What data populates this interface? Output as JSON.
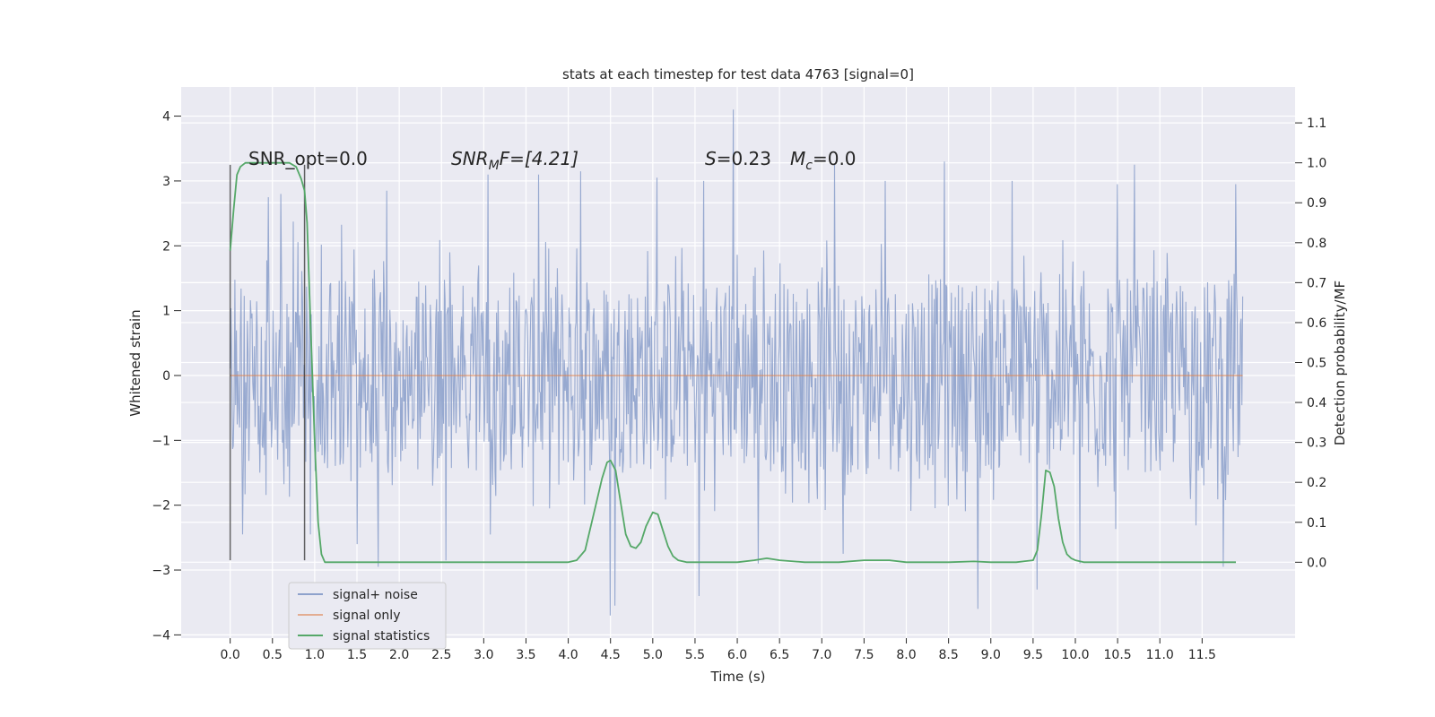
{
  "chart_data": {
    "type": "line",
    "title": "stats at each timestep for test data 4763 [signal=0]",
    "xlabel": "Time (s)",
    "ylabel_left": "Whitened strain",
    "ylabel_right": "Detection probability/MF",
    "xlim": [
      -0.58,
      12.6
    ],
    "ylim_left": [
      -4.05,
      4.45
    ],
    "ylim_right": [
      -0.19,
      1.19
    ],
    "x_ticks": [
      "0.0",
      "0.5",
      "1.0",
      "1.5",
      "2.0",
      "2.5",
      "3.0",
      "3.5",
      "4.0",
      "4.5",
      "5.0",
      "5.5",
      "6.0",
      "6.5",
      "7.0",
      "7.5",
      "8.0",
      "8.5",
      "9.0",
      "9.5",
      "10.0",
      "10.5",
      "11.0",
      "11.5"
    ],
    "y_ticks_left": [
      "−4",
      "−3",
      "−2",
      "−1",
      "0",
      "1",
      "2",
      "3",
      "4"
    ],
    "y_ticks_right": [
      "0.0",
      "0.1",
      "0.2",
      "0.3",
      "0.4",
      "0.5",
      "0.6",
      "0.7",
      "0.8",
      "0.9",
      "1.0",
      "1.1"
    ],
    "grid": true,
    "legend_position": "lower-left",
    "annotations": {
      "snr_opt": "SNR_opt=0.0",
      "snr_mf_sym": "SNR",
      "snr_mf_sub": "M",
      "snr_mf_rest": "F=[4.21]",
      "s_sym": "S",
      "s_rest": "=0.23",
      "mc_sym": "M",
      "mc_sub": "c",
      "mc_rest": "=0.0"
    },
    "markers": {
      "x_start": 0.0,
      "x_end": 0.88,
      "y_top": 3.25,
      "y_bottom": -2.85
    },
    "series": [
      {
        "name": "signal+ noise",
        "color": "#8ea2cc",
        "description_range": {
          "x": [
            0.0,
            11.98
          ],
          "typical_envelope": [
            -1.6,
            1.6
          ],
          "extreme_min": -3.7,
          "extreme_max": 4.1
        },
        "spikes_up": [
          [
            0.45,
            2.75
          ],
          [
            0.6,
            2.8
          ],
          [
            0.95,
            2.8
          ],
          [
            1.85,
            2.85
          ],
          [
            2.55,
            3.0
          ],
          [
            3.05,
            3.1
          ],
          [
            3.65,
            3.1
          ],
          [
            4.15,
            3.15
          ],
          [
            5.05,
            3.05
          ],
          [
            5.6,
            3.0
          ],
          [
            5.95,
            4.1
          ],
          [
            6.25,
            2.95
          ],
          [
            7.15,
            3.25
          ],
          [
            7.75,
            3.0
          ],
          [
            8.45,
            3.3
          ],
          [
            9.25,
            3.0
          ],
          [
            10.05,
            3.05
          ],
          [
            10.7,
            3.25
          ],
          [
            10.5,
            2.95
          ],
          [
            11.9,
            2.95
          ]
        ],
        "spikes_down": [
          [
            0.15,
            -2.45
          ],
          [
            0.95,
            -2.45
          ],
          [
            1.5,
            -2.6
          ],
          [
            1.75,
            -2.95
          ],
          [
            2.55,
            -2.85
          ],
          [
            4.5,
            -3.7
          ],
          [
            4.55,
            -3.55
          ],
          [
            5.55,
            -3.4
          ],
          [
            6.25,
            -2.9
          ],
          [
            7.25,
            -2.75
          ],
          [
            8.85,
            -3.6
          ],
          [
            9.55,
            -3.3
          ],
          [
            10.05,
            -2.9
          ],
          [
            11.75,
            -2.95
          ]
        ]
      },
      {
        "name": "signal only",
        "color": "#dd8452",
        "x": [
          0.0,
          11.98
        ],
        "y": [
          0.0,
          0.0
        ]
      },
      {
        "name": "signal statistics",
        "color": "#55a868",
        "axis": "right",
        "x": [
          0.0,
          0.04,
          0.08,
          0.12,
          0.18,
          0.25,
          0.4,
          0.55,
          0.7,
          0.78,
          0.84,
          0.88,
          0.91,
          0.95,
          1.0,
          1.04,
          1.08,
          1.12,
          1.2,
          1.5,
          2.0,
          3.0,
          4.0,
          4.1,
          4.2,
          4.3,
          4.4,
          4.46,
          4.5,
          4.56,
          4.62,
          4.68,
          4.74,
          4.8,
          4.86,
          4.92,
          5.0,
          5.06,
          5.12,
          5.18,
          5.24,
          5.3,
          5.4,
          5.6,
          5.8,
          6.0,
          6.2,
          6.35,
          6.5,
          6.8,
          7.2,
          7.5,
          7.8,
          8.0,
          8.5,
          8.8,
          9.0,
          9.3,
          9.5,
          9.55,
          9.6,
          9.65,
          9.7,
          9.75,
          9.8,
          9.85,
          9.9,
          9.95,
          10.0,
          10.1,
          10.3,
          10.6,
          11.0,
          11.5,
          11.9
        ],
        "y": [
          0.78,
          0.88,
          0.97,
          0.99,
          1.0,
          1.0,
          1.0,
          1.0,
          1.0,
          0.99,
          0.96,
          0.93,
          0.85,
          0.6,
          0.3,
          0.1,
          0.02,
          0.0,
          0.0,
          0.0,
          0.0,
          0.0,
          0.0,
          0.005,
          0.03,
          0.12,
          0.21,
          0.25,
          0.255,
          0.23,
          0.15,
          0.07,
          0.04,
          0.035,
          0.05,
          0.09,
          0.125,
          0.12,
          0.08,
          0.04,
          0.015,
          0.005,
          0.0,
          0.0,
          0.0,
          0.0,
          0.005,
          0.01,
          0.005,
          0.0,
          0.0,
          0.005,
          0.005,
          0.0,
          0.0,
          0.002,
          0.0,
          0.0,
          0.005,
          0.03,
          0.12,
          0.23,
          0.225,
          0.19,
          0.11,
          0.05,
          0.02,
          0.01,
          0.005,
          0.0,
          0.0,
          0.0,
          0.0,
          0.0,
          0.0
        ]
      }
    ]
  }
}
